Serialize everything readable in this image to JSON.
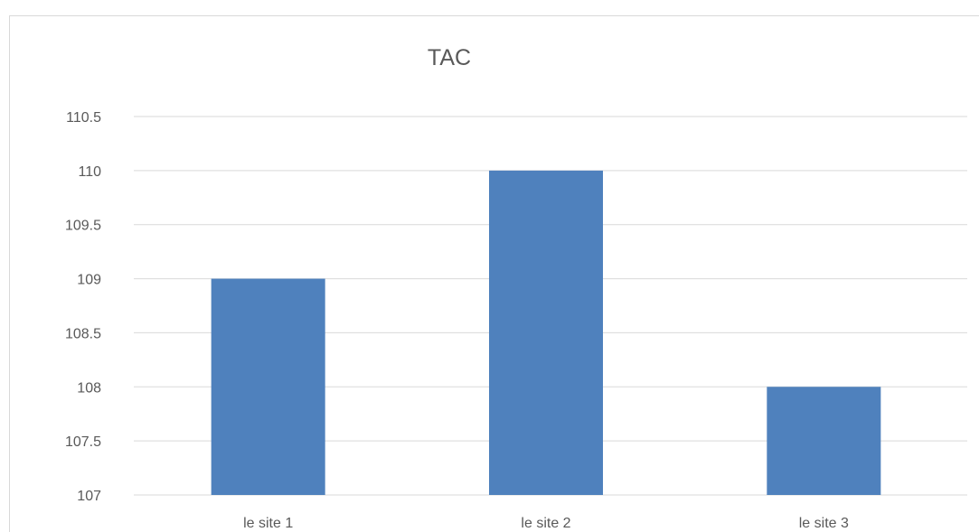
{
  "chart_data": {
    "type": "bar",
    "title": "TAC",
    "categories": [
      "le site 1",
      "le site 2",
      "le site 3"
    ],
    "values": [
      109,
      110,
      108
    ],
    "xlabel": "",
    "ylabel": "",
    "ylim": [
      107,
      110.5
    ],
    "yticks": [
      "107",
      "107.5",
      "108",
      "108.5",
      "109",
      "109.5",
      "110",
      "110.5"
    ],
    "grid": true,
    "legend": "none",
    "bar_color": "#4f81bd",
    "grid_color": "#d9d9d9",
    "text_color": "#595959"
  }
}
